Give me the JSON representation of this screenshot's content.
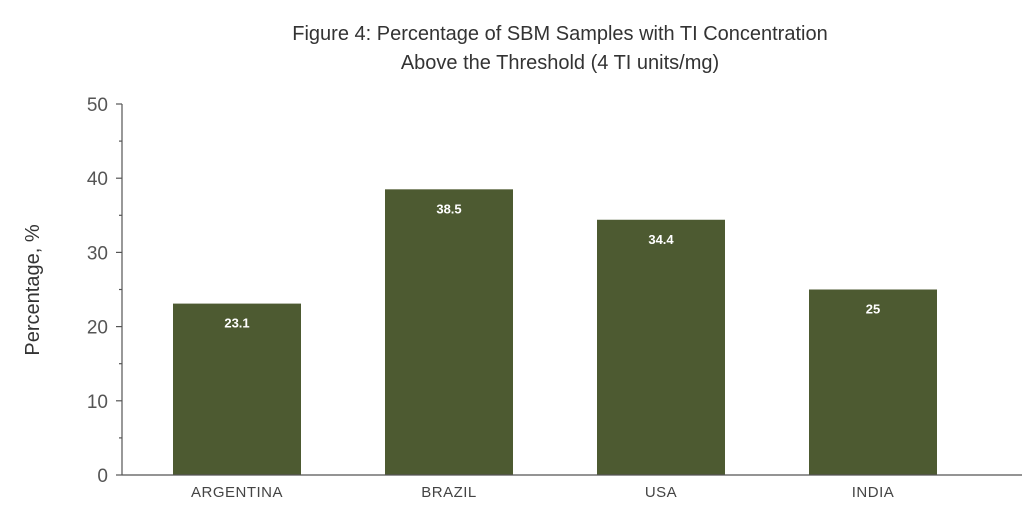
{
  "chart_data": {
    "type": "bar",
    "title": "Figure 4: Percentage of SBM Samples with TI Concentration",
    "subtitle": "Above the Threshold (4 TI units/mg)",
    "xlabel": "",
    "ylabel": "Percentage, %",
    "categories": [
      "ARGENTINA",
      "BRAZIL",
      "USA",
      "INDIA"
    ],
    "values": [
      23.1,
      38.5,
      34.4,
      25
    ],
    "value_labels": [
      "23.1",
      "38.5",
      "34.4",
      "25"
    ],
    "ylim": [
      0,
      50
    ],
    "yticks": [
      0,
      10,
      20,
      30,
      40,
      50
    ],
    "ytick_labels": [
      "0",
      "10",
      "20",
      "30",
      "40",
      "50"
    ],
    "grid": false,
    "legend": "none",
    "bar_color": "#4d5a31",
    "value_label_color": "#ffffff"
  }
}
